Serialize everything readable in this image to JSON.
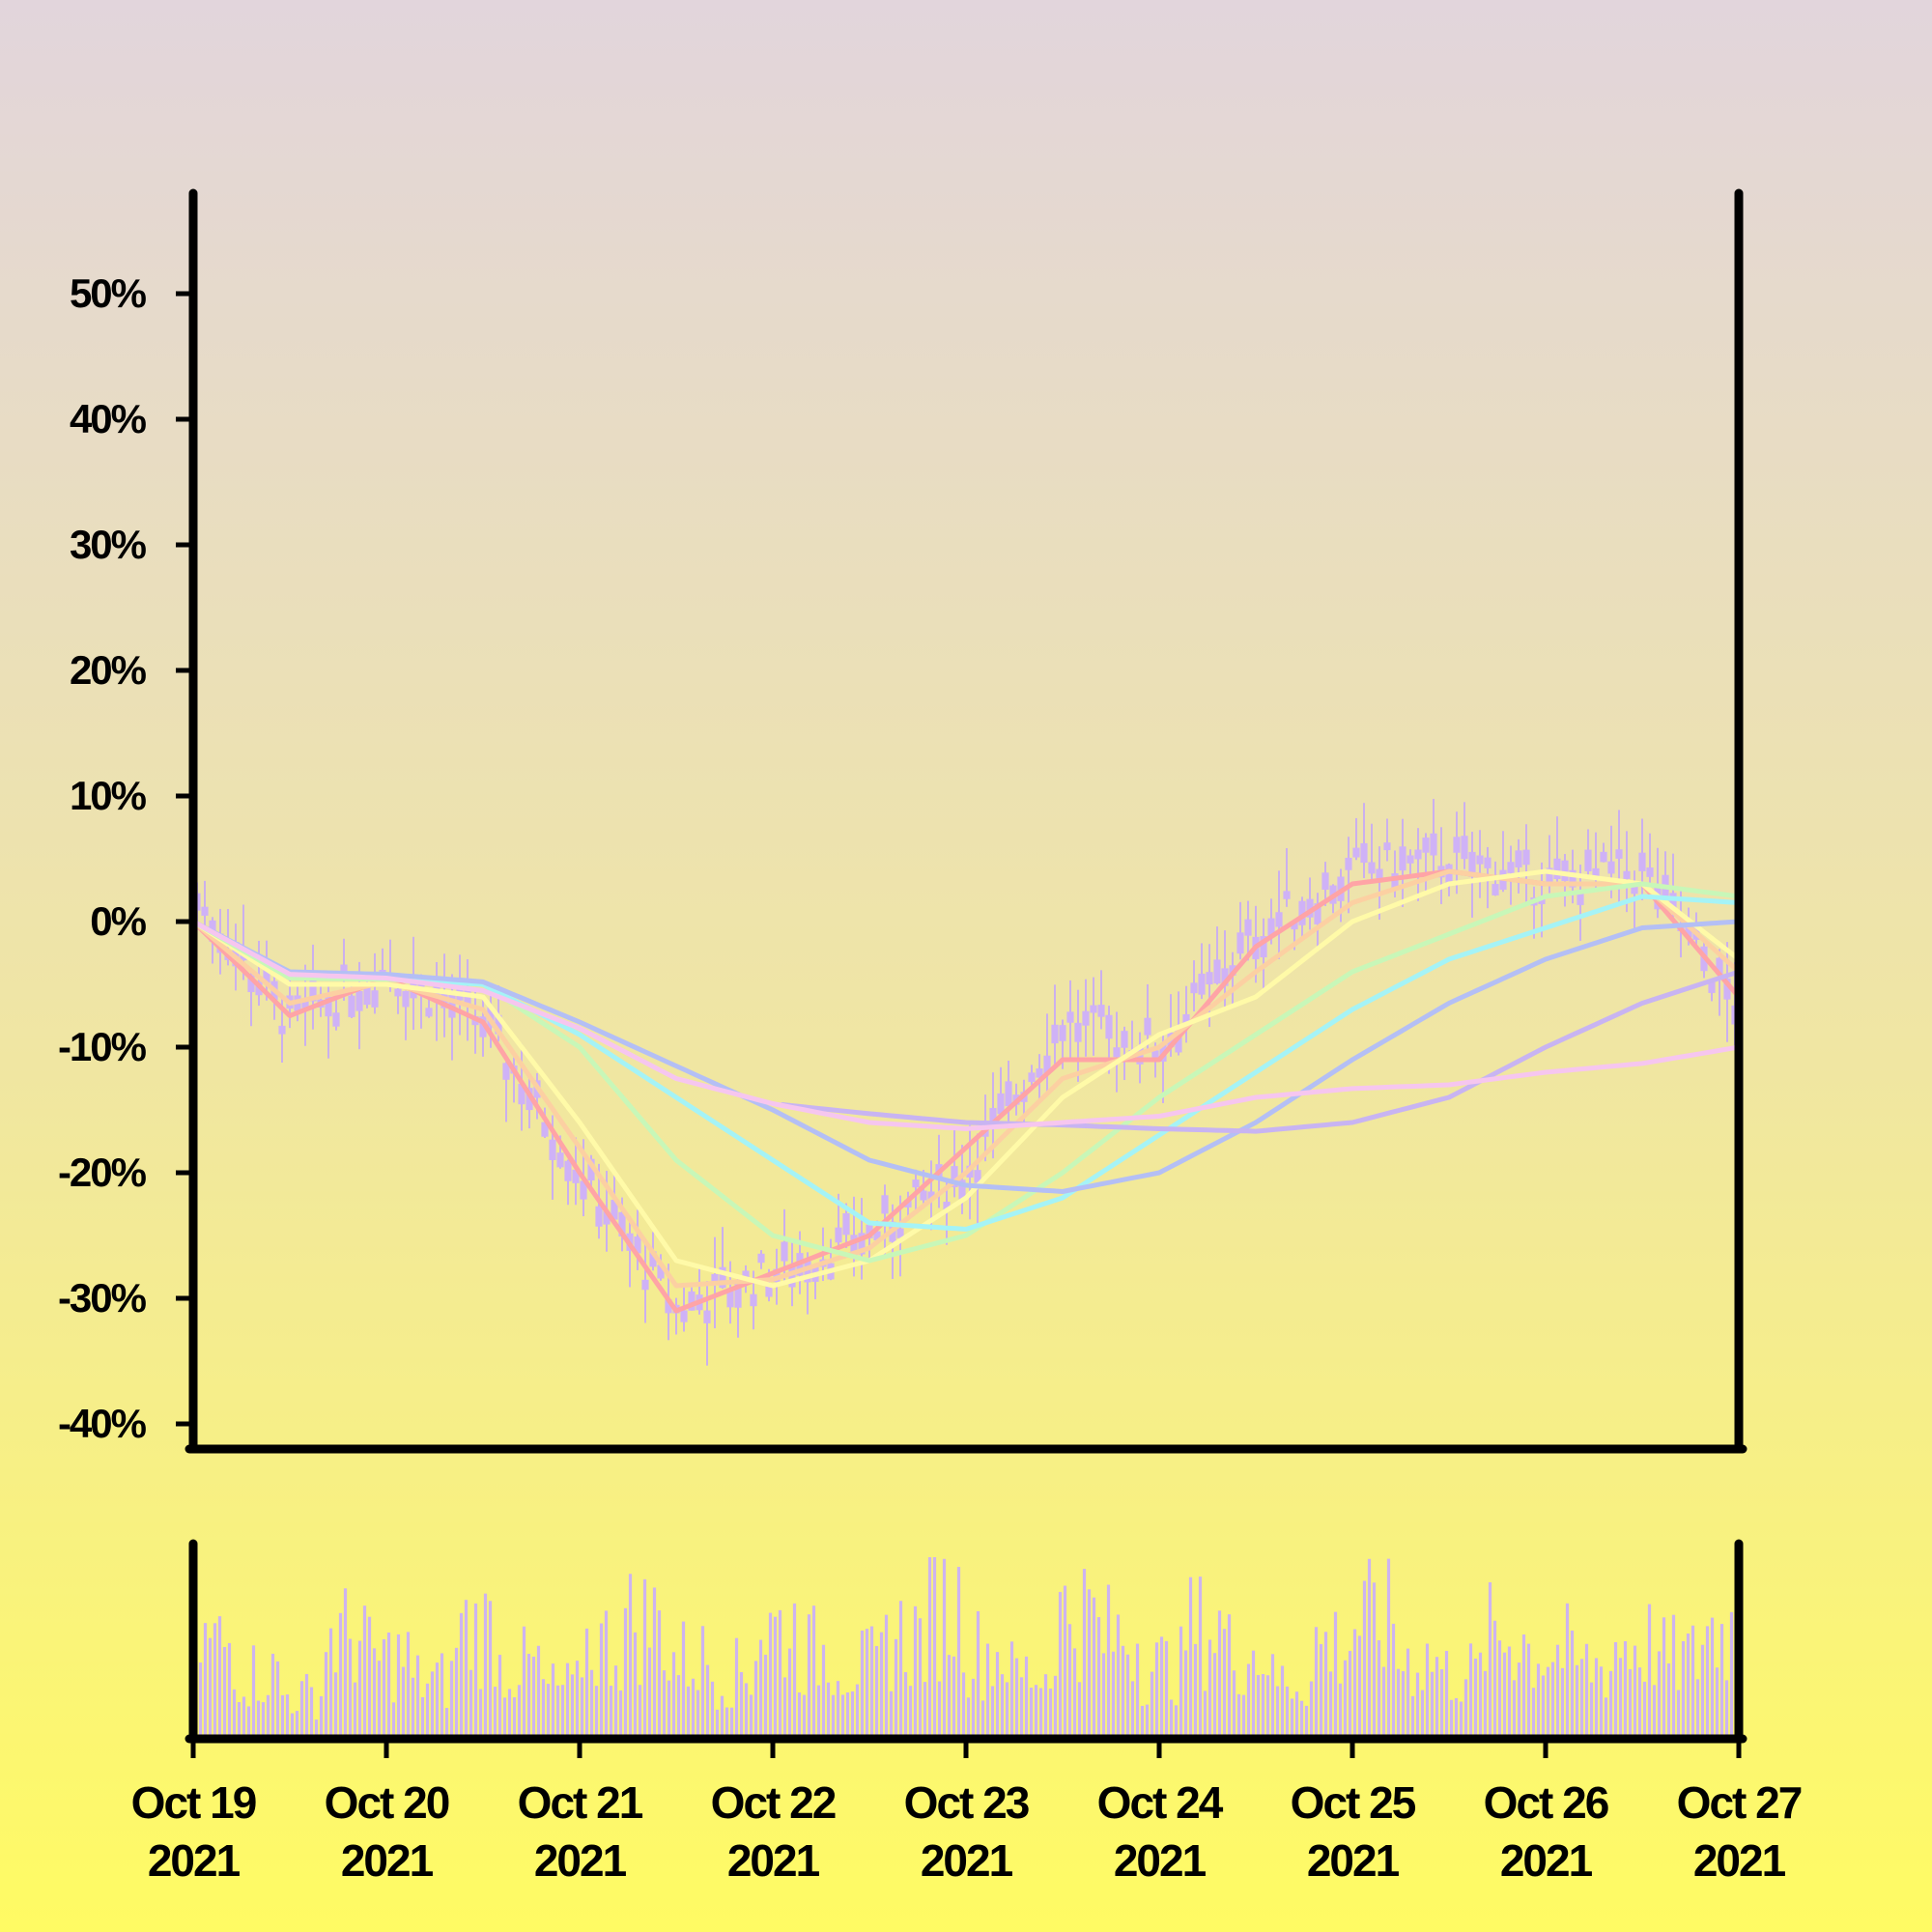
{
  "chart_data": [
    {
      "type": "candlestick",
      "title": "",
      "xlabel": "",
      "ylabel": "",
      "y_tick_labels": [
        "50%",
        "40%",
        "30%",
        "20%",
        "10%",
        "0%",
        "-10%",
        "-20%",
        "-30%",
        "-40%"
      ],
      "y_tick_values": [
        50,
        40,
        30,
        20,
        10,
        0,
        -10,
        -20,
        -30,
        -40
      ],
      "ylim": [
        -42,
        58
      ],
      "x_tick_labels": [
        [
          "Oct 19",
          "2021"
        ],
        [
          "Oct 20",
          "2021"
        ],
        [
          "Oct 21",
          "2021"
        ],
        [
          "Oct 22",
          "2021"
        ],
        [
          "Oct 23",
          "2021"
        ],
        [
          "Oct 24",
          "2021"
        ],
        [
          "Oct 25",
          "2021"
        ],
        [
          "Oct 26",
          "2021"
        ],
        [
          "Oct 27",
          "2021"
        ]
      ],
      "x_tick_dates": [
        "2021-10-19",
        "2021-10-20",
        "2021-10-21",
        "2021-10-22",
        "2021-10-23",
        "2021-10-24",
        "2021-10-25",
        "2021-10-26",
        "2021-10-27"
      ],
      "xlim": [
        "2021-10-19",
        "2021-10-27"
      ],
      "price_path_percent": {
        "x": [
          "2021-10-19",
          "2021-10-19T12:00",
          "2021-10-20",
          "2021-10-20T12:00",
          "2021-10-21",
          "2021-10-21T12:00",
          "2021-10-22",
          "2021-10-22T12:00",
          "2021-10-23",
          "2021-10-23T12:00",
          "2021-10-24",
          "2021-10-24T12:00",
          "2021-10-25",
          "2021-10-25T12:00",
          "2021-10-26",
          "2021-10-26T12:00",
          "2021-10-27"
        ],
        "y": [
          2,
          -8,
          -4,
          -8,
          -20,
          -31,
          -28,
          -25,
          -20,
          -8,
          -10,
          -1,
          4,
          5,
          3,
          4,
          -7
        ]
      },
      "moving_averages": [
        {
          "color": "#ffa4a6",
          "x": [
            "2021-10-19",
            "2021-10-19T12:00",
            "2021-10-20",
            "2021-10-20T12:00",
            "2021-10-21",
            "2021-10-21T12:00",
            "2021-10-22",
            "2021-10-22T12:00",
            "2021-10-23",
            "2021-10-23T12:00",
            "2021-10-24",
            "2021-10-24T12:00",
            "2021-10-25",
            "2021-10-25T12:00",
            "2021-10-26",
            "2021-10-26T12:00",
            "2021-10-27"
          ],
          "y": [
            0,
            -7.5,
            -4.5,
            -8,
            -20,
            -31,
            -28,
            -25,
            -18,
            -11,
            -11,
            -2,
            3,
            4,
            3,
            3,
            -6
          ]
        },
        {
          "color": "#fcd0a2",
          "x": [
            "2021-10-19",
            "2021-10-19T12:00",
            "2021-10-20",
            "2021-10-20T12:00",
            "2021-10-21",
            "2021-10-21T12:00",
            "2021-10-22",
            "2021-10-22T12:00",
            "2021-10-23",
            "2021-10-23T12:00",
            "2021-10-24",
            "2021-10-24T12:00",
            "2021-10-25",
            "2021-10-25T12:00",
            "2021-10-26",
            "2021-10-26T12:00",
            "2021-10-27"
          ],
          "y": [
            0,
            -6.5,
            -4.8,
            -7,
            -18,
            -29,
            -28.5,
            -26,
            -20,
            -12.5,
            -10,
            -4,
            1.5,
            4,
            3,
            3,
            -4
          ]
        },
        {
          "color": "#fffaa8",
          "x": [
            "2021-10-19",
            "2021-10-19T12:00",
            "2021-10-20",
            "2021-10-20T12:00",
            "2021-10-21",
            "2021-10-21T12:00",
            "2021-10-22",
            "2021-10-22T12:00",
            "2021-10-23",
            "2021-10-23T12:00",
            "2021-10-24",
            "2021-10-24T12:00",
            "2021-10-25",
            "2021-10-25T12:00",
            "2021-10-26",
            "2021-10-26T12:00",
            "2021-10-27"
          ],
          "y": [
            0,
            -5,
            -5,
            -6,
            -16,
            -27,
            -29,
            -27,
            -22,
            -14,
            -9,
            -6,
            0,
            3,
            4,
            3,
            -3
          ]
        },
        {
          "color": "#c8f7b8",
          "x": [
            "2021-10-19",
            "2021-10-19T12:00",
            "2021-10-20",
            "2021-10-20T12:00",
            "2021-10-21",
            "2021-10-21T12:00",
            "2021-10-22",
            "2021-10-22T12:00",
            "2021-10-23",
            "2021-10-23T12:00",
            "2021-10-24",
            "2021-10-24T12:00",
            "2021-10-25",
            "2021-10-25T12:00",
            "2021-10-26",
            "2021-10-26T12:00",
            "2021-10-27"
          ],
          "y": [
            0,
            -4.5,
            -4.6,
            -5,
            -10,
            -19,
            -25,
            -27,
            -25,
            -20,
            -14,
            -9,
            -4,
            -1,
            2,
            3,
            2
          ]
        },
        {
          "color": "#a5f3f6",
          "x": [
            "2021-10-19",
            "2021-10-19T12:00",
            "2021-10-20",
            "2021-10-20T12:00",
            "2021-10-21",
            "2021-10-21T12:00",
            "2021-10-22",
            "2021-10-22T12:00",
            "2021-10-23",
            "2021-10-23T12:00",
            "2021-10-24",
            "2021-10-24T12:00",
            "2021-10-25",
            "2021-10-25T12:00",
            "2021-10-26",
            "2021-10-26T12:00",
            "2021-10-27"
          ],
          "y": [
            0,
            -4.2,
            -4.5,
            -5,
            -9,
            -14,
            -19,
            -24,
            -24.5,
            -22,
            -17,
            -12,
            -7,
            -3,
            -0.5,
            2,
            1.5
          ]
        },
        {
          "color": "#b4bff5",
          "x": [
            "2021-10-19",
            "2021-10-19T12:00",
            "2021-10-20",
            "2021-10-20T12:00",
            "2021-10-21",
            "2021-10-21T12:00",
            "2021-10-22",
            "2021-10-22T12:00",
            "2021-10-23",
            "2021-10-23T12:00",
            "2021-10-24",
            "2021-10-24T12:00",
            "2021-10-25",
            "2021-10-25T12:00",
            "2021-10-26",
            "2021-10-26T12:00",
            "2021-10-27"
          ],
          "y": [
            0,
            -4,
            -4.2,
            -4.8,
            -8,
            -11.5,
            -15,
            -19,
            -21,
            -21.5,
            -20,
            -16,
            -11,
            -6.5,
            -3,
            -0.5,
            0
          ]
        },
        {
          "color": "#c8b4f2",
          "x": [
            "2021-10-19",
            "2021-10-19T12:00",
            "2021-10-20",
            "2021-10-20T12:00",
            "2021-10-21",
            "2021-10-21T12:00",
            "2021-10-22",
            "2021-10-22T12:00",
            "2021-10-23",
            "2021-10-23T12:00",
            "2021-10-24",
            "2021-10-24T12:00",
            "2021-10-25",
            "2021-10-25T12:00",
            "2021-10-26",
            "2021-10-26T12:00",
            "2021-10-27"
          ],
          "y": [
            null,
            null,
            null,
            null,
            null,
            null,
            -14.5,
            -15.3,
            -16,
            -16.2,
            -16.5,
            -16.7,
            -16,
            -14,
            -10,
            -6.5,
            -4
          ]
        },
        {
          "color": "#f6c6ef",
          "x": [
            "2021-10-19",
            "2021-10-19T12:00",
            "2021-10-20",
            "2021-10-20T12:00",
            "2021-10-21",
            "2021-10-21T12:00",
            "2021-10-22",
            "2021-10-22T12:00",
            "2021-10-23",
            "2021-10-23T12:00",
            "2021-10-24",
            "2021-10-24T12:00",
            "2021-10-25",
            "2021-10-25T12:00",
            "2021-10-26",
            "2021-10-26T12:00",
            "2021-10-27"
          ],
          "y": [
            0,
            -4.2,
            -4.5,
            -5.5,
            -8.5,
            -12.5,
            -14.5,
            -16,
            -16.5,
            -16,
            -15.5,
            -14,
            -13.3,
            -13,
            -12,
            -11.3,
            -10
          ]
        }
      ],
      "candle_color": "#cfb2f7",
      "wick_color": "#cbb0ee"
    },
    {
      "type": "bar",
      "title": "",
      "series_label": "",
      "bar_color": "#cdb4f0",
      "relative_volume_profile": [
        0.65,
        0.45,
        0.3,
        0.7,
        0.55,
        0.4,
        0.75,
        0.5,
        0.35,
        0.65,
        0.8,
        0.55,
        0.45,
        0.75,
        0.6,
        0.5,
        0.7,
        0.9,
        0.6,
        0.45,
        0.85,
        0.7,
        0.5,
        0.75,
        0.6,
        0.4,
        0.65,
        0.8,
        0.55,
        0.45,
        0.7,
        0.6,
        0.5,
        0.65,
        0.55,
        0.75
      ]
    }
  ]
}
